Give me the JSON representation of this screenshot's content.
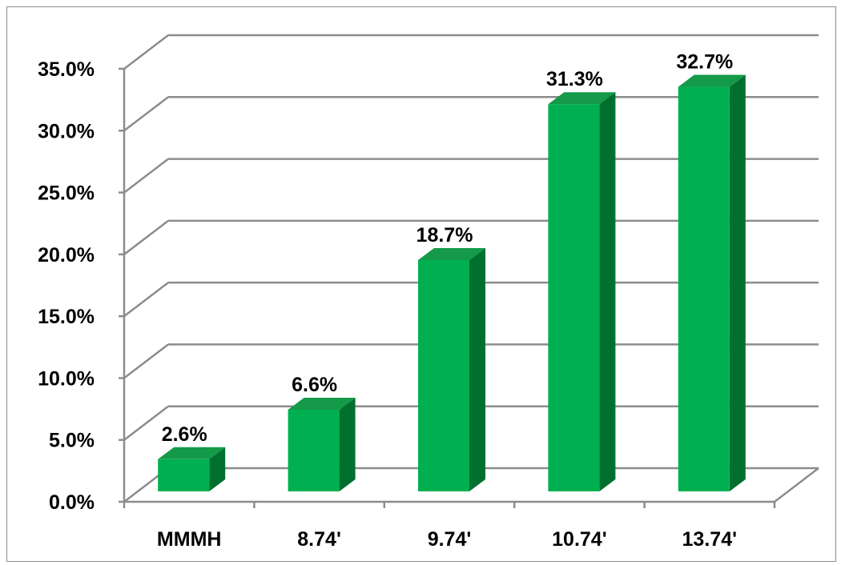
{
  "chart_data": {
    "type": "bar",
    "style": "3d-column",
    "categories": [
      "MMMH",
      "8.74'",
      "9.74'",
      "10.74'",
      "13.74'"
    ],
    "values": [
      2.6,
      6.6,
      18.7,
      31.3,
      32.7
    ],
    "data_labels": [
      "2.6%",
      "6.6%",
      "18.7%",
      "31.3%",
      "32.7%"
    ],
    "y_ticks": [
      "0.0%",
      "5.0%",
      "10.0%",
      "15.0%",
      "20.0%",
      "25.0%",
      "30.0%",
      "35.0%"
    ],
    "ylim": [
      0,
      35
    ],
    "grid": true,
    "legend": "none",
    "title": "",
    "xlabel": "",
    "ylabel": "",
    "colors": {
      "bar_front": "#00b050",
      "bar_side": "#00702f",
      "bar_top": "#149a48",
      "gridline": "#8c8c8c",
      "text": "#000000"
    }
  }
}
